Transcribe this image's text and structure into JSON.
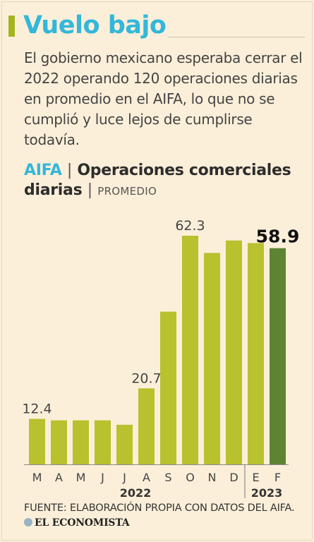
{
  "header": {
    "title": "Vuelo bajo",
    "intro": "El gobierno mexicano esperaba cerrar el 2022 operando 120 operaciones diarias en promedio en el AIFA, lo que no se cumplió y luce lejos de cumplirse todavía."
  },
  "chart_data": {
    "type": "bar",
    "title_part1": "AIFA",
    "title_separator": "|",
    "title_part2": "Operaciones comerciales diarias",
    "subtitle": "PROMEDIO",
    "categories": [
      "M",
      "A",
      "M",
      "J",
      "J",
      "A",
      "S",
      "O",
      "N",
      "D",
      "E",
      "F"
    ],
    "values": [
      12.4,
      12.0,
      12.0,
      12.0,
      10.8,
      20.7,
      41.6,
      62.3,
      57.6,
      61.0,
      60.3,
      58.9
    ],
    "labels": [
      {
        "index": 0,
        "text": "12.4"
      },
      {
        "index": 5,
        "text": "20.7"
      },
      {
        "index": 7,
        "text": "62.3"
      },
      {
        "index": 11,
        "text": "58.9",
        "highlight": true
      }
    ],
    "year_groups": [
      {
        "label": "2022",
        "from": 0,
        "to": 9
      },
      {
        "label": "2023",
        "from": 10,
        "to": 11
      }
    ],
    "colors": {
      "bar": "#b8c12e",
      "highlight": "#5d8431"
    },
    "ylim": [
      0,
      70
    ]
  },
  "footer": {
    "source": "FUENTE: ELABORACIÓN PROPIA CON DATOS DEL AIFA.",
    "logo": "EL ECONOMISTA"
  }
}
